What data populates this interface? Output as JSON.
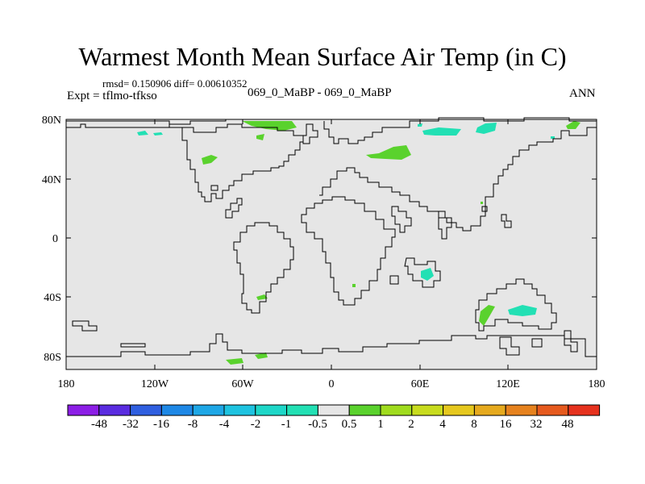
{
  "title": "Warmest Month Mean Surface Air Temp (in C)",
  "stats": "rmsd= 0.150906 diff= 0.00610352",
  "expt": "Expt = tflmo-tfkso",
  "subtitle": "069_0_MaBP - 069_0_MaBP",
  "season": "ANN",
  "y_axis": {
    "tick_labels": [
      "80N",
      "40N",
      "0",
      "40S",
      "80S"
    ]
  },
  "x_axis": {
    "tick_labels": [
      "180",
      "120W",
      "60W",
      "0",
      "60E",
      "120E",
      "180"
    ]
  },
  "colorbar": {
    "labels": [
      "-48",
      "-32",
      "-16",
      "-8",
      "-4",
      "-2",
      "-1",
      "-0.5",
      "0.5",
      "1",
      "2",
      "4",
      "8",
      "16",
      "32",
      "48"
    ],
    "colors": [
      "#8c1ee6",
      "#5a2ce0",
      "#2f5fe0",
      "#1e88e6",
      "#1ea7e6",
      "#1ec3e0",
      "#1ed7c8",
      "#22e0b4",
      "#e6e6e6",
      "#5ad22d",
      "#a0dc1e",
      "#c8dc1e",
      "#e6c81e",
      "#e6aa1e",
      "#e6821e",
      "#e65a1e",
      "#e6321e"
    ]
  },
  "map": {
    "background_color": "#e6e6e6",
    "positive_anomaly_color": "#5ad22d",
    "negative_anomaly_color": "#22e0b4"
  }
}
